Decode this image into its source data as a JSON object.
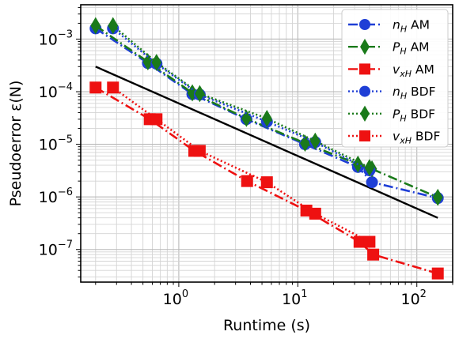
{
  "chart_data": {
    "type": "line",
    "xlabel": "Runtime (s)",
    "ylabel": "Pseudoerror ε(N)",
    "xscale": "log",
    "yscale": "log",
    "xlim": [
      0.15,
      200
    ],
    "ylim": [
      2.4e-08,
      0.0045
    ],
    "grid": true,
    "legend_position": "top-right",
    "x_tick_labels": [
      {
        "value": 1,
        "base": "10",
        "exp": "0"
      },
      {
        "value": 10,
        "base": "10",
        "exp": "1"
      },
      {
        "value": 100,
        "base": "10",
        "exp": "2"
      }
    ],
    "y_tick_labels": [
      {
        "value": 1e-07,
        "base": "10",
        "exp": "−7"
      },
      {
        "value": 1e-06,
        "base": "10",
        "exp": "−6"
      },
      {
        "value": 1e-05,
        "base": "10",
        "exp": "−5"
      },
      {
        "value": 0.0001,
        "base": "10",
        "exp": "−4"
      },
      {
        "value": 0.001,
        "base": "10",
        "exp": "−3"
      }
    ],
    "series": [
      {
        "name": "nH AM",
        "label_base": "n",
        "label_sub": "H",
        "label_tail": " AM",
        "color": "#1f3fd6",
        "marker": "circle",
        "dash": "12,4,2,4",
        "x": [
          0.2,
          0.55,
          1.3,
          3.7,
          11.5,
          32,
          42,
          150
        ],
        "y": [
          0.0016,
          0.00035,
          9e-05,
          3e-05,
          1e-05,
          3.7e-06,
          1.9e-06,
          9.5e-07
        ]
      },
      {
        "name": "PH AM",
        "label_base": "P",
        "label_sub": "H",
        "label_tail": " AM",
        "color": "#1a7a1a",
        "marker": "diamond",
        "dash": "12,4,2,4",
        "x": [
          0.2,
          0.55,
          1.3,
          3.7,
          11.5,
          32,
          42,
          150
        ],
        "y": [
          0.0018,
          0.00037,
          9.5e-05,
          3.1e-05,
          1.05e-05,
          4.2e-06,
          3.4e-06,
          9.8e-07
        ]
      },
      {
        "name": "vxH AM",
        "label_base": "v",
        "label_sub": "xH",
        "label_tail": " AM",
        "color": "#ee1111",
        "marker": "square",
        "dash": "12,4,2,4",
        "x": [
          0.2,
          0.57,
          1.35,
          3.75,
          11.8,
          33,
          43,
          150
        ],
        "y": [
          0.00012,
          3e-05,
          7.5e-06,
          2e-06,
          5.5e-07,
          1.4e-07,
          8e-08,
          3.5e-08
        ]
      },
      {
        "name": "nH BDF",
        "label_base": "n",
        "label_sub": "H",
        "label_tail": " BDF",
        "color": "#1f3fd6",
        "marker": "circle",
        "dash": "2,3",
        "x": [
          0.28,
          0.65,
          1.5,
          5.5,
          14,
          40
        ],
        "y": [
          0.0016,
          0.00034,
          8.8e-05,
          2.7e-05,
          1.1e-05,
          3.2e-06
        ]
      },
      {
        "name": "PH BDF",
        "label_base": "P",
        "label_sub": "H",
        "label_tail": " BDF",
        "color": "#1a7a1a",
        "marker": "diamond",
        "dash": "2,3",
        "x": [
          0.28,
          0.65,
          1.5,
          5.5,
          14,
          40
        ],
        "y": [
          0.0018,
          0.00036,
          9.2e-05,
          3.1e-05,
          1.15e-05,
          3.6e-06
        ]
      },
      {
        "name": "vxH BDF",
        "label_base": "v",
        "label_sub": "xH",
        "label_tail": " BDF",
        "color": "#ee1111",
        "marker": "square",
        "dash": "2,3",
        "x": [
          0.28,
          0.65,
          1.5,
          5.5,
          14,
          40
        ],
        "y": [
          0.00012,
          3e-05,
          7.5e-06,
          1.9e-06,
          4.8e-07,
          1.4e-07
        ]
      }
    ],
    "reference_line": {
      "color": "#000000",
      "x": [
        0.2,
        150
      ],
      "y": [
        0.0003,
        4e-07
      ]
    }
  }
}
